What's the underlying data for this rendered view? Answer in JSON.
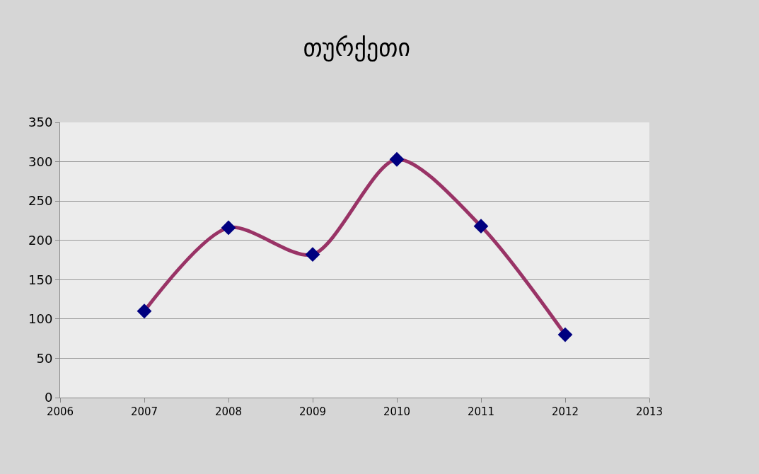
{
  "chart_data": {
    "type": "line",
    "title": "თურქეთი",
    "x": [
      2007,
      2008,
      2009,
      2010,
      2011,
      2012
    ],
    "series": [
      {
        "color": "#993366",
        "colors": [
          "#000080",
          "#000080",
          "#000080",
          "#000080",
          "#000080",
          "#000080"
        ],
        "values": [
          110,
          216,
          182,
          303,
          218,
          80
        ]
      }
    ],
    "xlim": [
      2006,
      2013
    ],
    "xticks": [
      2006,
      2007,
      2008,
      2009,
      2010,
      2011,
      2012,
      2013
    ],
    "ylim": [
      0,
      350
    ],
    "yticks": [
      0,
      50,
      100,
      150,
      200,
      250,
      300,
      350
    ],
    "grid": "y",
    "marker": "diamond"
  }
}
